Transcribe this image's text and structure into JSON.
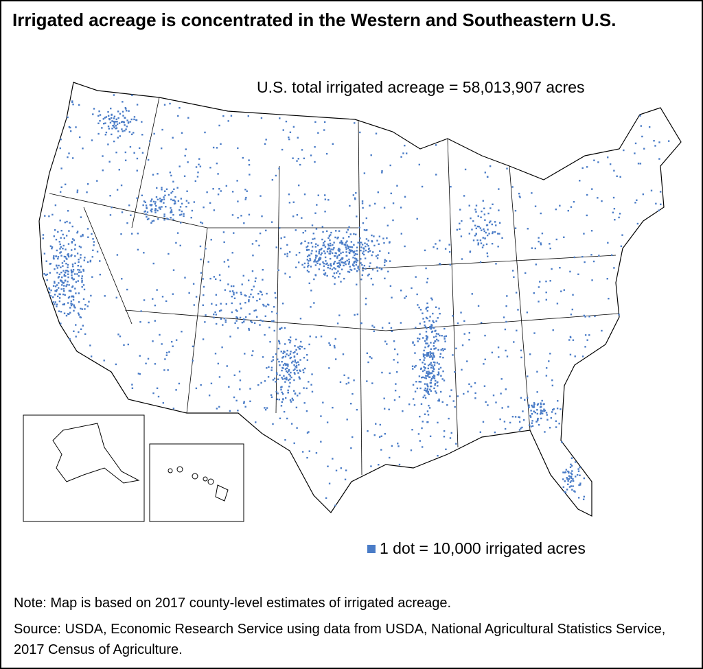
{
  "title": "Irrigated acreage is concentrated in the Western and Southeastern U.S.",
  "annotation": "U.S. total irrigated acreage = 58,013,907 acres",
  "legend": "1 dot = 10,000 irrigated acres",
  "note": "Note: Map is based on 2017 county-level estimates of irrigated acreage.",
  "source": "Source: USDA, Economic Research Service using data from USDA, National Agricultural Statistics Service, 2017 Census of Agriculture."
}
